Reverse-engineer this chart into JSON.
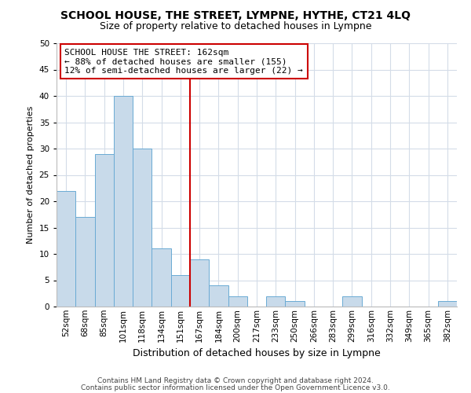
{
  "title": "SCHOOL HOUSE, THE STREET, LYMPNE, HYTHE, CT21 4LQ",
  "subtitle": "Size of property relative to detached houses in Lympne",
  "xlabel": "Distribution of detached houses by size in Lympne",
  "ylabel": "Number of detached properties",
  "footer_line1": "Contains HM Land Registry data © Crown copyright and database right 2024.",
  "footer_line2": "Contains public sector information licensed under the Open Government Licence v3.0.",
  "bin_labels": [
    "52sqm",
    "68sqm",
    "85sqm",
    "101sqm",
    "118sqm",
    "134sqm",
    "151sqm",
    "167sqm",
    "184sqm",
    "200sqm",
    "217sqm",
    "233sqm",
    "250sqm",
    "266sqm",
    "283sqm",
    "299sqm",
    "316sqm",
    "332sqm",
    "349sqm",
    "365sqm",
    "382sqm"
  ],
  "bar_values": [
    22,
    17,
    29,
    40,
    30,
    11,
    6,
    9,
    4,
    2,
    0,
    2,
    1,
    0,
    0,
    2,
    0,
    0,
    0,
    0,
    1
  ],
  "bar_color": "#c8daea",
  "bar_edge_color": "#6aaad4",
  "vline_x_index": 7,
  "vline_color": "#cc0000",
  "annotation_line1": "SCHOOL HOUSE THE STREET: 162sqm",
  "annotation_line2": "← 88% of detached houses are smaller (155)",
  "annotation_line3": "12% of semi-detached houses are larger (22) →",
  "annotation_box_color": "#ffffff",
  "annotation_box_edge_color": "#cc0000",
  "ylim": [
    0,
    50
  ],
  "yticks": [
    0,
    5,
    10,
    15,
    20,
    25,
    30,
    35,
    40,
    45,
    50
  ],
  "grid_color": "#d4dce8",
  "background_color": "#ffffff",
  "title_fontsize": 10,
  "subtitle_fontsize": 9,
  "xlabel_fontsize": 9,
  "ylabel_fontsize": 8,
  "tick_fontsize": 7.5,
  "annotation_fontsize": 8,
  "footer_fontsize": 6.5
}
